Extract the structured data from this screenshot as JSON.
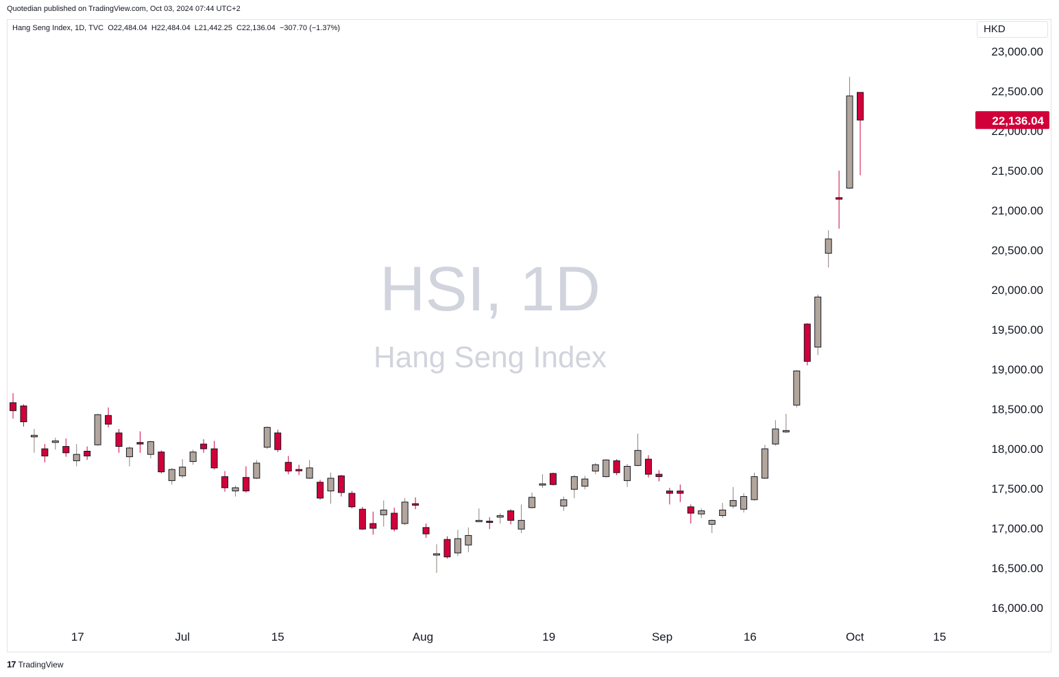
{
  "header": {
    "publisher_line": "Quotedian published on TradingView.com, Oct 03, 2024 07:44 UTC+2",
    "legend": "Hang Seng Index, 1D, TVC  O22,484.04  H22,484.04  L21,442.25  C22,136.04  −307.70 (−1.37%)",
    "currency": "HKD"
  },
  "watermark": {
    "symbol": "HSI, 1D",
    "name": "Hang Seng Index"
  },
  "footer": {
    "brand": "TradingView",
    "logo_icon": "tradingview-logo-icon"
  },
  "colors": {
    "up": "#b2a69c",
    "down": "#d1003a",
    "outline": "#131722",
    "price_label_bg": "#d1003a"
  },
  "chart_data": {
    "type": "candlestick",
    "title": "Hang Seng Index",
    "symbol": "HSI",
    "interval": "1D",
    "y_axis": {
      "position": "right",
      "range": [
        15800,
        23200
      ],
      "ticks": [
        "16,000.00",
        "16,500.00",
        "17,000.00",
        "17,500.00",
        "18,000.00",
        "18,500.00",
        "19,000.00",
        "19,500.00",
        "20,000.00",
        "20,500.00",
        "21,000.00",
        "21,500.00",
        "22,000.00",
        "22,500.00",
        "23,000.00"
      ],
      "tick_values": [
        16000,
        16500,
        17000,
        17500,
        18000,
        18500,
        19000,
        19500,
        20000,
        20500,
        21000,
        21500,
        22000,
        22500,
        23000
      ]
    },
    "x_axis": {
      "labels": [
        {
          "text": "17",
          "index": 6.1
        },
        {
          "text": "Jul",
          "index": 16.0
        },
        {
          "text": "15",
          "index": 25.0
        },
        {
          "text": "Aug",
          "index": 38.7
        },
        {
          "text": "19",
          "index": 50.6
        },
        {
          "text": "Sep",
          "index": 61.3
        },
        {
          "text": "16",
          "index": 69.6
        },
        {
          "text": "Oct",
          "index": 79.5
        },
        {
          "text": "15",
          "index": 87.5
        }
      ]
    },
    "last_price": {
      "value": 22136.04,
      "label": "22,136.04"
    },
    "candles": [
      {
        "o": 18580,
        "h": 18700,
        "l": 18380,
        "c": 18480
      },
      {
        "o": 18540,
        "h": 18560,
        "l": 18280,
        "c": 18340
      },
      {
        "o": 18150,
        "h": 18250,
        "l": 17950,
        "c": 18170
      },
      {
        "o": 18000,
        "h": 18060,
        "l": 17830,
        "c": 17910
      },
      {
        "o": 18080,
        "h": 18140,
        "l": 17990,
        "c": 18100
      },
      {
        "o": 18030,
        "h": 18130,
        "l": 17900,
        "c": 17950
      },
      {
        "o": 17850,
        "h": 18060,
        "l": 17780,
        "c": 17930
      },
      {
        "o": 17970,
        "h": 18030,
        "l": 17860,
        "c": 17910
      },
      {
        "o": 18050,
        "h": 18440,
        "l": 18040,
        "c": 18430
      },
      {
        "o": 18420,
        "h": 18520,
        "l": 18270,
        "c": 18310
      },
      {
        "o": 18200,
        "h": 18250,
        "l": 17950,
        "c": 18030
      },
      {
        "o": 17900,
        "h": 18030,
        "l": 17780,
        "c": 18010
      },
      {
        "o": 18080,
        "h": 18220,
        "l": 17950,
        "c": 18060
      },
      {
        "o": 17930,
        "h": 18100,
        "l": 17880,
        "c": 18090
      },
      {
        "o": 17960,
        "h": 17980,
        "l": 17690,
        "c": 17710
      },
      {
        "o": 17600,
        "h": 17760,
        "l": 17550,
        "c": 17740
      },
      {
        "o": 17660,
        "h": 17870,
        "l": 17630,
        "c": 17770
      },
      {
        "o": 17840,
        "h": 17990,
        "l": 17800,
        "c": 17960
      },
      {
        "o": 18060,
        "h": 18120,
        "l": 17950,
        "c": 18000
      },
      {
        "o": 18000,
        "h": 18100,
        "l": 17740,
        "c": 17760
      },
      {
        "o": 17650,
        "h": 17720,
        "l": 17460,
        "c": 17510
      },
      {
        "o": 17470,
        "h": 17540,
        "l": 17400,
        "c": 17510
      },
      {
        "o": 17640,
        "h": 17780,
        "l": 17450,
        "c": 17470
      },
      {
        "o": 17630,
        "h": 17860,
        "l": 17620,
        "c": 17820
      },
      {
        "o": 18020,
        "h": 18280,
        "l": 18000,
        "c": 18270
      },
      {
        "o": 18200,
        "h": 18240,
        "l": 17960,
        "c": 17990
      },
      {
        "o": 17830,
        "h": 17910,
        "l": 17680,
        "c": 17720
      },
      {
        "o": 17740,
        "h": 17800,
        "l": 17670,
        "c": 17730
      },
      {
        "o": 17630,
        "h": 17860,
        "l": 17620,
        "c": 17760
      },
      {
        "o": 17580,
        "h": 17610,
        "l": 17360,
        "c": 17380
      },
      {
        "o": 17470,
        "h": 17700,
        "l": 17310,
        "c": 17630
      },
      {
        "o": 17660,
        "h": 17670,
        "l": 17400,
        "c": 17450
      },
      {
        "o": 17440,
        "h": 17470,
        "l": 17250,
        "c": 17270
      },
      {
        "o": 17240,
        "h": 17270,
        "l": 16980,
        "c": 16990
      },
      {
        "o": 17060,
        "h": 17210,
        "l": 16920,
        "c": 17000
      },
      {
        "o": 17170,
        "h": 17350,
        "l": 17020,
        "c": 17230
      },
      {
        "o": 17190,
        "h": 17260,
        "l": 16960,
        "c": 16990
      },
      {
        "o": 17060,
        "h": 17380,
        "l": 17040,
        "c": 17330
      },
      {
        "o": 17310,
        "h": 17390,
        "l": 17240,
        "c": 17290
      },
      {
        "o": 17010,
        "h": 17060,
        "l": 16880,
        "c": 16930
      },
      {
        "o": 16670,
        "h": 16800,
        "l": 16440,
        "c": 16680
      },
      {
        "o": 16860,
        "h": 16900,
        "l": 16620,
        "c": 16640
      },
      {
        "o": 16690,
        "h": 16980,
        "l": 16650,
        "c": 16870
      },
      {
        "o": 16790,
        "h": 17010,
        "l": 16700,
        "c": 16910
      },
      {
        "o": 17090,
        "h": 17250,
        "l": 17080,
        "c": 17100
      },
      {
        "o": 17090,
        "h": 17140,
        "l": 16990,
        "c": 17080
      },
      {
        "o": 17140,
        "h": 17190,
        "l": 17060,
        "c": 17160
      },
      {
        "o": 17220,
        "h": 17240,
        "l": 17050,
        "c": 17100
      },
      {
        "o": 16990,
        "h": 17300,
        "l": 16940,
        "c": 17100
      },
      {
        "o": 17260,
        "h": 17450,
        "l": 17250,
        "c": 17390
      },
      {
        "o": 17550,
        "h": 17680,
        "l": 17510,
        "c": 17560
      },
      {
        "o": 17690,
        "h": 17700,
        "l": 17540,
        "c": 17550
      },
      {
        "o": 17280,
        "h": 17400,
        "l": 17220,
        "c": 17360
      },
      {
        "o": 17490,
        "h": 17670,
        "l": 17380,
        "c": 17650
      },
      {
        "o": 17530,
        "h": 17660,
        "l": 17490,
        "c": 17620
      },
      {
        "o": 17720,
        "h": 17820,
        "l": 17680,
        "c": 17800
      },
      {
        "o": 17650,
        "h": 17870,
        "l": 17640,
        "c": 17860
      },
      {
        "o": 17850,
        "h": 17870,
        "l": 17670,
        "c": 17700
      },
      {
        "o": 17600,
        "h": 17810,
        "l": 17520,
        "c": 17780
      },
      {
        "o": 17790,
        "h": 18190,
        "l": 17780,
        "c": 17980
      },
      {
        "o": 17870,
        "h": 17920,
        "l": 17640,
        "c": 17680
      },
      {
        "o": 17680,
        "h": 17730,
        "l": 17590,
        "c": 17650
      },
      {
        "o": 17470,
        "h": 17510,
        "l": 17300,
        "c": 17440
      },
      {
        "o": 17470,
        "h": 17550,
        "l": 17330,
        "c": 17440
      },
      {
        "o": 17270,
        "h": 17300,
        "l": 17060,
        "c": 17190
      },
      {
        "o": 17180,
        "h": 17250,
        "l": 17130,
        "c": 17220
      },
      {
        "o": 17050,
        "h": 17110,
        "l": 16940,
        "c": 17100
      },
      {
        "o": 17160,
        "h": 17320,
        "l": 17130,
        "c": 17230
      },
      {
        "o": 17280,
        "h": 17520,
        "l": 17250,
        "c": 17350
      },
      {
        "o": 17240,
        "h": 17440,
        "l": 17200,
        "c": 17400
      },
      {
        "o": 17360,
        "h": 17700,
        "l": 17350,
        "c": 17650
      },
      {
        "o": 17630,
        "h": 18050,
        "l": 17620,
        "c": 18000
      },
      {
        "o": 18060,
        "h": 18360,
        "l": 18040,
        "c": 18250
      },
      {
        "o": 18220,
        "h": 18440,
        "l": 18200,
        "c": 18230
      },
      {
        "o": 18550,
        "h": 18990,
        "l": 18520,
        "c": 18980
      },
      {
        "o": 19570,
        "h": 19580,
        "l": 19050,
        "c": 19100
      },
      {
        "o": 19280,
        "h": 19940,
        "l": 19180,
        "c": 19910
      },
      {
        "o": 20460,
        "h": 20750,
        "l": 20280,
        "c": 20640
      },
      {
        "o": 21160,
        "h": 21500,
        "l": 20770,
        "c": 21140
      },
      {
        "o": 21280,
        "h": 22680,
        "l": 21270,
        "c": 22440
      },
      {
        "o": 22484.04,
        "h": 22484.04,
        "l": 21442.25,
        "c": 22136.04
      }
    ]
  }
}
